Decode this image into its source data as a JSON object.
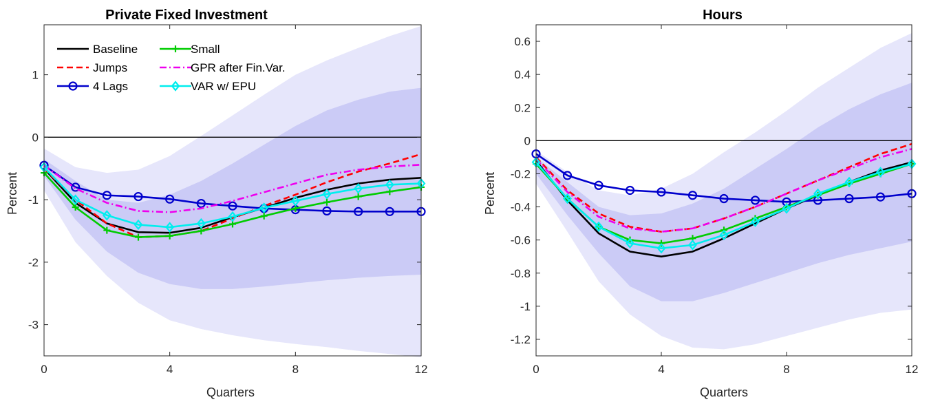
{
  "chart_data": [
    {
      "type": "line",
      "title": "Private Fixed Investment",
      "xlabel": "Quarters",
      "ylabel": "Percent",
      "xlim": [
        0,
        12
      ],
      "ylim": [
        -3.5,
        1.8
      ],
      "xticks": [
        0,
        4,
        8,
        12
      ],
      "xtick_labels": [
        "0",
        "4",
        "8",
        "12"
      ],
      "yticks": [
        -3,
        -2,
        -1,
        0,
        1
      ],
      "ytick_labels": [
        "-3",
        "-2",
        "-1",
        "0",
        "1"
      ],
      "grid": false,
      "legend_position": "top-left",
      "x": [
        0,
        1,
        2,
        3,
        4,
        5,
        6,
        7,
        8,
        9,
        10,
        11,
        12
      ],
      "bands": [
        {
          "level": "outer",
          "color": "#e6e6fb",
          "lower": [
            -0.85,
            -1.68,
            -2.22,
            -2.65,
            -2.93,
            -3.07,
            -3.17,
            -3.25,
            -3.31,
            -3.36,
            -3.42,
            -3.47,
            -3.52
          ],
          "upper": [
            -0.18,
            -0.48,
            -0.57,
            -0.52,
            -0.3,
            0.02,
            0.35,
            0.68,
            1.0,
            1.23,
            1.43,
            1.62,
            1.78
          ]
        },
        {
          "level": "inner",
          "color": "#cbcbf6",
          "lower": [
            -0.62,
            -1.32,
            -1.83,
            -2.17,
            -2.35,
            -2.43,
            -2.43,
            -2.39,
            -2.34,
            -2.29,
            -2.25,
            -2.22,
            -2.2
          ],
          "upper": [
            -0.35,
            -0.7,
            -1.0,
            -1.05,
            -0.92,
            -0.7,
            -0.42,
            -0.12,
            0.18,
            0.43,
            0.6,
            0.73,
            0.79
          ]
        }
      ],
      "series": [
        {
          "name": "Baseline",
          "color": "#000000",
          "dash": "solid",
          "marker": "none",
          "values": [
            -0.5,
            -1.05,
            -1.38,
            -1.52,
            -1.53,
            -1.45,
            -1.28,
            -1.13,
            -0.97,
            -0.84,
            -0.74,
            -0.68,
            -0.65
          ]
        },
        {
          "name": "Jumps",
          "color": "#ff0000",
          "dash": "dashed",
          "marker": "none",
          "values": [
            -0.5,
            -1.0,
            -1.38,
            -1.6,
            -1.58,
            -1.5,
            -1.3,
            -1.1,
            -0.92,
            -0.72,
            -0.55,
            -0.42,
            -0.27
          ]
        },
        {
          "name": "4 Lags",
          "color": "#0000cc",
          "dash": "solid",
          "marker": "circle",
          "values": [
            -0.45,
            -0.8,
            -0.93,
            -0.95,
            -0.99,
            -1.06,
            -1.1,
            -1.14,
            -1.16,
            -1.18,
            -1.19,
            -1.19,
            -1.19
          ]
        },
        {
          "name": "Small",
          "color": "#00cc00",
          "dash": "solid",
          "marker": "plus",
          "values": [
            -0.57,
            -1.12,
            -1.49,
            -1.6,
            -1.58,
            -1.5,
            -1.39,
            -1.26,
            -1.14,
            -1.04,
            -0.95,
            -0.87,
            -0.8
          ]
        },
        {
          "name": "GPR after Fin.Var.",
          "color": "#ee00ee",
          "dash": "dashdot",
          "marker": "none",
          "values": [
            -0.45,
            -0.82,
            -1.05,
            -1.18,
            -1.2,
            -1.14,
            -1.02,
            -0.88,
            -0.74,
            -0.6,
            -0.52,
            -0.47,
            -0.44
          ]
        },
        {
          "name": "VAR w/ EPU",
          "color": "#00eeee",
          "dash": "solid",
          "marker": "diamond",
          "values": [
            -0.48,
            -1.0,
            -1.25,
            -1.4,
            -1.44,
            -1.38,
            -1.27,
            -1.13,
            -1.02,
            -0.91,
            -0.82,
            -0.76,
            -0.74
          ]
        }
      ]
    },
    {
      "type": "line",
      "title": "Hours",
      "xlabel": "Quarters",
      "ylabel": "Percent",
      "xlim": [
        0,
        12
      ],
      "ylim": [
        -1.3,
        0.7
      ],
      "xticks": [
        0,
        4,
        8,
        12
      ],
      "xtick_labels": [
        "0",
        "4",
        "8",
        "12"
      ],
      "yticks": [
        -1.2,
        -1.0,
        -0.8,
        -0.6,
        -0.4,
        -0.2,
        0,
        0.2,
        0.4,
        0.6
      ],
      "ytick_labels": [
        "-1.2",
        "-1",
        "-0.8",
        "-0.6",
        "-0.4",
        "-0.2",
        "0",
        "0.2",
        "0.4",
        "0.6"
      ],
      "grid": false,
      "legend_position": "none",
      "x": [
        0,
        1,
        2,
        3,
        4,
        5,
        6,
        7,
        8,
        9,
        10,
        11,
        12
      ],
      "bands": [
        {
          "level": "outer",
          "color": "#e6e6fb",
          "lower": [
            -0.26,
            -0.55,
            -0.85,
            -1.05,
            -1.18,
            -1.25,
            -1.26,
            -1.23,
            -1.18,
            -1.13,
            -1.08,
            -1.04,
            -1.02
          ],
          "upper": [
            -0.06,
            -0.19,
            -0.3,
            -0.33,
            -0.29,
            -0.2,
            -0.07,
            0.05,
            0.18,
            0.32,
            0.44,
            0.56,
            0.65
          ]
        },
        {
          "level": "inner",
          "color": "#cbcbf6",
          "lower": [
            -0.2,
            -0.45,
            -0.68,
            -0.88,
            -0.97,
            -0.97,
            -0.92,
            -0.86,
            -0.8,
            -0.74,
            -0.69,
            -0.65,
            -0.61
          ]
        },
        {
          "level": "inner-upper",
          "upper": [
            -0.1,
            -0.25,
            -0.4,
            -0.45,
            -0.44,
            -0.38,
            -0.29,
            -0.17,
            -0.05,
            0.08,
            0.19,
            0.28,
            0.35
          ]
        }
      ],
      "series": [
        {
          "name": "Baseline",
          "color": "#000000",
          "dash": "solid",
          "marker": "none",
          "values": [
            -0.12,
            -0.36,
            -0.56,
            -0.67,
            -0.7,
            -0.67,
            -0.59,
            -0.5,
            -0.41,
            -0.33,
            -0.25,
            -0.18,
            -0.13
          ]
        },
        {
          "name": "Jumps",
          "color": "#ff0000",
          "dash": "dashed",
          "marker": "none",
          "values": [
            -0.1,
            -0.3,
            -0.44,
            -0.52,
            -0.55,
            -0.53,
            -0.47,
            -0.4,
            -0.32,
            -0.24,
            -0.16,
            -0.08,
            -0.02
          ]
        },
        {
          "name": "4 Lags",
          "color": "#0000cc",
          "dash": "solid",
          "marker": "circle",
          "values": [
            -0.08,
            -0.21,
            -0.27,
            -0.3,
            -0.31,
            -0.33,
            -0.35,
            -0.36,
            -0.37,
            -0.36,
            -0.35,
            -0.34,
            -0.32
          ]
        },
        {
          "name": "Small",
          "color": "#00cc00",
          "dash": "solid",
          "marker": "plus",
          "values": [
            -0.14,
            -0.35,
            -0.52,
            -0.6,
            -0.62,
            -0.59,
            -0.54,
            -0.47,
            -0.4,
            -0.33,
            -0.26,
            -0.2,
            -0.14
          ]
        },
        {
          "name": "GPR after Fin.Var.",
          "color": "#ee00ee",
          "dash": "dashdot",
          "marker": "none",
          "values": [
            -0.11,
            -0.31,
            -0.46,
            -0.53,
            -0.55,
            -0.53,
            -0.47,
            -0.4,
            -0.32,
            -0.24,
            -0.17,
            -0.1,
            -0.05
          ]
        },
        {
          "name": "VAR w/ EPU",
          "color": "#00eeee",
          "dash": "solid",
          "marker": "diamond",
          "values": [
            -0.13,
            -0.35,
            -0.52,
            -0.62,
            -0.65,
            -0.63,
            -0.57,
            -0.49,
            -0.41,
            -0.32,
            -0.25,
            -0.19,
            -0.14
          ]
        }
      ]
    }
  ]
}
